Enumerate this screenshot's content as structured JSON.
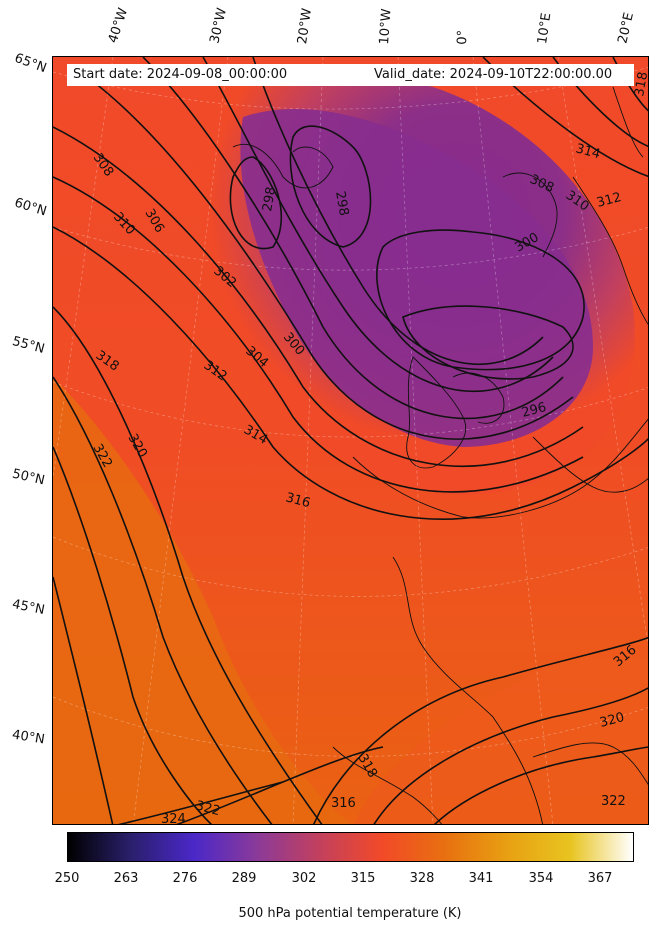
{
  "map": {
    "start_label": "Start date: 2024-09-08_00:00:00",
    "valid_label": "Valid_date: 2024-09-10T22:00:00.00",
    "lon_labels": [
      "40°W",
      "30°W",
      "20°W",
      "10°W",
      "0°",
      "10°E",
      "20°E"
    ],
    "lat_labels": [
      "65°N",
      "60°N",
      "55°N",
      "50°N",
      "45°N",
      "40°N"
    ],
    "contour_labels": [
      "308",
      "306",
      "310",
      "302",
      "298",
      "298",
      "300",
      "304",
      "312",
      "318",
      "314",
      "320",
      "322",
      "316",
      "300",
      "296",
      "314",
      "308",
      "310",
      "312",
      "318",
      "316",
      "320",
      "322",
      "318",
      "316",
      "324",
      "322"
    ],
    "colors": {
      "cold": "#8a2d8c",
      "mid": "#f04a28",
      "warm": "#e8680e",
      "contour": "#111111"
    }
  },
  "colorbar": {
    "title": "500 hPa potential temperature (K)",
    "ticks": [
      "250",
      "263",
      "276",
      "289",
      "302",
      "315",
      "328",
      "341",
      "354",
      "367"
    ],
    "colors": [
      "#000000",
      "#2a1f6b",
      "#4a28c8",
      "#8a3a9a",
      "#c2405e",
      "#f24a28",
      "#e87010",
      "#e8a012",
      "#e8c420",
      "#ffffff"
    ]
  }
}
